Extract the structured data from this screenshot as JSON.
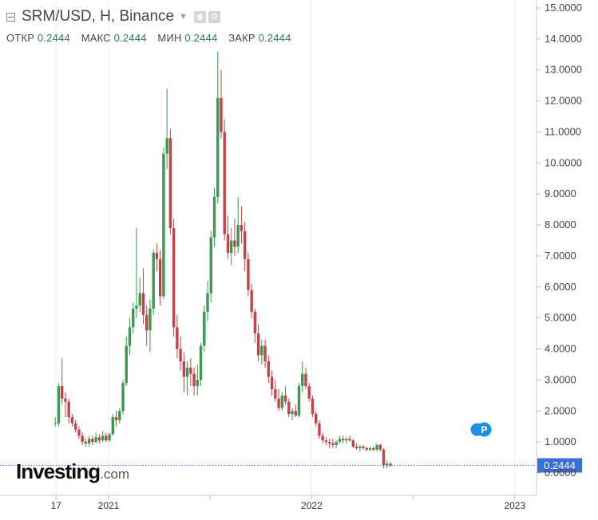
{
  "header": {
    "title": "SRM/USD, H, Binance",
    "ohlc": [
      {
        "label": "ОТКР",
        "value": "0.2444"
      },
      {
        "label": "МАКС",
        "value": "0.2444"
      },
      {
        "label": "МИН",
        "value": "0.2444"
      },
      {
        "label": "ЗАКР",
        "value": "0.2444"
      }
    ]
  },
  "logo": {
    "main": "Investing",
    "suffix": ".com"
  },
  "colors": {
    "up": "#3a9a4f",
    "down": "#c0454a",
    "price_tag": "#3a6ed8",
    "event_marker": "#1e90e0"
  },
  "chart_data": {
    "type": "candlestick",
    "title": "SRM/USD, H, Binance",
    "xlabel": "",
    "ylabel": "",
    "ylim": [
      -0.05,
      15.25
    ],
    "y_ticks": [
      "15.0000",
      "14.0000",
      "13.0000",
      "12.0000",
      "11.0000",
      "10.0000",
      "9.0000",
      "8.0000",
      "7.0000",
      "6.0000",
      "5.0000",
      "4.0000",
      "3.0000",
      "2.0000",
      "1.0000",
      "0.0000"
    ],
    "y_tick_values": [
      15,
      14,
      13,
      12,
      11,
      10,
      9,
      8,
      7,
      6,
      5,
      4,
      3,
      2,
      1,
      0
    ],
    "x_ticks": [
      {
        "label": "17",
        "t": -3.1
      },
      {
        "label": "2021",
        "t": 0
      },
      {
        "label": "2022",
        "t": 12
      },
      {
        "label": "2023",
        "t": 24
      }
    ],
    "x_unit": "months since Jan 2021",
    "last_price": "0.2444",
    "last_price_value": 0.2444,
    "event_marker": {
      "label": "P",
      "t": 22.1,
      "value": 1.4
    },
    "candles": [
      [
        -3.15,
        1.6,
        1.8,
        1.5,
        1.6
      ],
      [
        -2.95,
        1.6,
        2.9,
        1.5,
        2.8
      ],
      [
        -2.75,
        2.8,
        3.7,
        2.2,
        2.4
      ],
      [
        -2.55,
        2.4,
        2.6,
        1.8,
        2.3
      ],
      [
        -2.35,
        2.3,
        2.4,
        1.6,
        1.8
      ],
      [
        -2.15,
        1.8,
        1.9,
        1.5,
        1.6
      ],
      [
        -1.95,
        1.6,
        1.7,
        1.3,
        1.4
      ],
      [
        -1.75,
        1.4,
        1.5,
        1.1,
        1.2
      ],
      [
        -1.55,
        1.2,
        1.3,
        0.9,
        1.0
      ],
      [
        -1.35,
        1.0,
        1.1,
        0.85,
        0.95
      ],
      [
        -1.15,
        0.95,
        1.2,
        0.85,
        1.1
      ],
      [
        -0.95,
        1.1,
        1.2,
        0.9,
        1.0
      ],
      [
        -0.75,
        1.0,
        1.3,
        0.95,
        1.15
      ],
      [
        -0.55,
        1.15,
        1.25,
        0.95,
        1.05
      ],
      [
        -0.35,
        1.05,
        1.35,
        1.0,
        1.2
      ],
      [
        -0.15,
        1.2,
        1.3,
        1.0,
        1.05
      ],
      [
        0.05,
        1.05,
        1.3,
        1.0,
        1.25
      ],
      [
        0.25,
        1.25,
        1.9,
        1.2,
        1.8
      ],
      [
        0.45,
        1.8,
        2.0,
        1.5,
        1.7
      ],
      [
        0.65,
        1.7,
        2.1,
        1.6,
        2.0
      ],
      [
        0.85,
        2.0,
        3.0,
        1.9,
        2.9
      ],
      [
        1.05,
        2.9,
        4.4,
        2.8,
        4.1
      ],
      [
        1.25,
        4.1,
        5.0,
        3.8,
        4.7
      ],
      [
        1.45,
        4.7,
        5.5,
        4.5,
        5.3
      ],
      [
        1.65,
        5.3,
        7.9,
        5.0,
        5.4
      ],
      [
        1.85,
        5.4,
        6.3,
        5.2,
        5.8
      ],
      [
        2.05,
        5.8,
        6.6,
        4.8,
        5.1
      ],
      [
        2.25,
        5.1,
        5.4,
        4.1,
        4.6
      ],
      [
        2.45,
        4.6,
        5.6,
        3.9,
        5.3
      ],
      [
        2.65,
        5.3,
        7.2,
        5.1,
        7.1
      ],
      [
        2.85,
        7.1,
        7.4,
        6.5,
        6.9
      ],
      [
        3.05,
        6.9,
        7.2,
        5.4,
        5.7
      ],
      [
        3.25,
        5.7,
        10.5,
        5.6,
        10.3
      ],
      [
        3.45,
        10.3,
        12.4,
        9.8,
        10.8
      ],
      [
        3.65,
        10.8,
        11.1,
        7.7,
        7.9
      ],
      [
        3.85,
        7.9,
        8.2,
        4.4,
        4.7
      ],
      [
        4.05,
        4.7,
        5.1,
        3.7,
        4.0
      ],
      [
        4.25,
        4.0,
        4.4,
        3.3,
        3.6
      ],
      [
        4.45,
        3.6,
        3.9,
        2.6,
        3.1
      ],
      [
        4.65,
        3.1,
        3.6,
        2.5,
        3.4
      ],
      [
        4.85,
        3.4,
        3.7,
        2.8,
        3.2
      ],
      [
        5.05,
        3.2,
        3.4,
        2.5,
        2.8
      ],
      [
        5.25,
        2.8,
        3.5,
        2.5,
        3.0
      ],
      [
        5.45,
        3.0,
        4.2,
        2.8,
        4.1
      ],
      [
        5.65,
        4.1,
        5.4,
        3.9,
        5.2
      ],
      [
        5.85,
        5.2,
        6.2,
        4.9,
        5.8
      ],
      [
        6.05,
        5.8,
        7.8,
        5.5,
        7.6
      ],
      [
        6.25,
        7.6,
        9.2,
        7.3,
        8.9
      ],
      [
        6.45,
        8.9,
        13.6,
        8.7,
        12.1
      ],
      [
        6.65,
        12.1,
        13.0,
        10.8,
        11.0
      ],
      [
        6.85,
        11.0,
        11.4,
        7.5,
        7.7
      ],
      [
        7.05,
        7.7,
        8.3,
        6.9,
        7.1
      ],
      [
        7.25,
        7.1,
        7.9,
        6.7,
        7.5
      ],
      [
        7.45,
        7.5,
        8.2,
        7.0,
        7.3
      ],
      [
        7.65,
        7.3,
        8.9,
        7.1,
        8.0
      ],
      [
        7.85,
        8.0,
        8.6,
        7.4,
        7.8
      ],
      [
        8.05,
        7.8,
        8.1,
        6.5,
        6.9
      ],
      [
        8.25,
        6.9,
        7.1,
        5.7,
        5.9
      ],
      [
        8.45,
        5.9,
        6.1,
        5.0,
        5.2
      ],
      [
        8.65,
        5.2,
        5.3,
        4.2,
        4.5
      ],
      [
        8.85,
        4.5,
        4.8,
        3.6,
        3.8
      ],
      [
        9.05,
        3.8,
        4.3,
        3.5,
        4.1
      ],
      [
        9.25,
        4.1,
        4.3,
        3.4,
        3.6
      ],
      [
        9.45,
        3.6,
        3.8,
        2.9,
        3.1
      ],
      [
        9.65,
        3.1,
        3.3,
        2.5,
        2.7
      ],
      [
        9.85,
        2.7,
        3.0,
        2.3,
        2.4
      ],
      [
        10.05,
        2.4,
        2.7,
        2.0,
        2.1
      ],
      [
        10.25,
        2.1,
        2.6,
        2.0,
        2.5
      ],
      [
        10.45,
        2.5,
        2.8,
        2.2,
        2.3
      ],
      [
        10.65,
        2.3,
        2.4,
        1.8,
        1.9
      ],
      [
        10.85,
        1.9,
        2.1,
        1.7,
        2.0
      ],
      [
        11.05,
        2.0,
        2.2,
        1.8,
        1.85
      ],
      [
        11.25,
        1.85,
        2.9,
        1.8,
        2.8
      ],
      [
        11.45,
        2.8,
        3.6,
        2.6,
        3.2
      ],
      [
        11.65,
        3.2,
        3.4,
        2.7,
        2.8
      ],
      [
        11.85,
        2.8,
        2.9,
        2.3,
        2.4
      ],
      [
        12.05,
        2.4,
        2.5,
        1.8,
        1.9
      ],
      [
        12.25,
        1.9,
        2.0,
        1.5,
        1.6
      ],
      [
        12.45,
        1.6,
        1.7,
        1.1,
        1.2
      ],
      [
        12.65,
        1.2,
        1.3,
        0.95,
        1.05
      ],
      [
        12.85,
        1.05,
        1.15,
        0.9,
        1.0
      ],
      [
        13.05,
        1.0,
        1.1,
        0.8,
        0.95
      ],
      [
        13.25,
        0.95,
        1.1,
        0.8,
        0.9
      ],
      [
        13.45,
        0.9,
        1.05,
        0.8,
        1.0
      ],
      [
        13.65,
        1.0,
        1.2,
        0.95,
        1.1
      ],
      [
        13.85,
        1.1,
        1.2,
        0.95,
        1.05
      ],
      [
        14.05,
        1.05,
        1.15,
        0.95,
        1.1
      ],
      [
        14.25,
        1.1,
        1.2,
        1.0,
        1.05
      ],
      [
        14.45,
        1.05,
        1.1,
        0.8,
        0.85
      ],
      [
        14.65,
        0.85,
        0.95,
        0.75,
        0.8
      ],
      [
        14.85,
        0.8,
        0.9,
        0.7,
        0.85
      ],
      [
        15.05,
        0.85,
        0.9,
        0.75,
        0.8
      ],
      [
        15.25,
        0.8,
        0.85,
        0.7,
        0.75
      ],
      [
        15.45,
        0.75,
        0.85,
        0.7,
        0.8
      ],
      [
        15.65,
        0.8,
        0.85,
        0.7,
        0.75
      ],
      [
        15.85,
        0.75,
        0.95,
        0.7,
        0.9
      ],
      [
        16.05,
        0.9,
        0.95,
        0.7,
        0.75
      ],
      [
        16.25,
        0.75,
        0.8,
        0.15,
        0.25
      ],
      [
        16.45,
        0.25,
        0.4,
        0.15,
        0.3
      ],
      [
        16.65,
        0.3,
        0.35,
        0.2,
        0.25
      ]
    ]
  },
  "x_map_note": ""
}
